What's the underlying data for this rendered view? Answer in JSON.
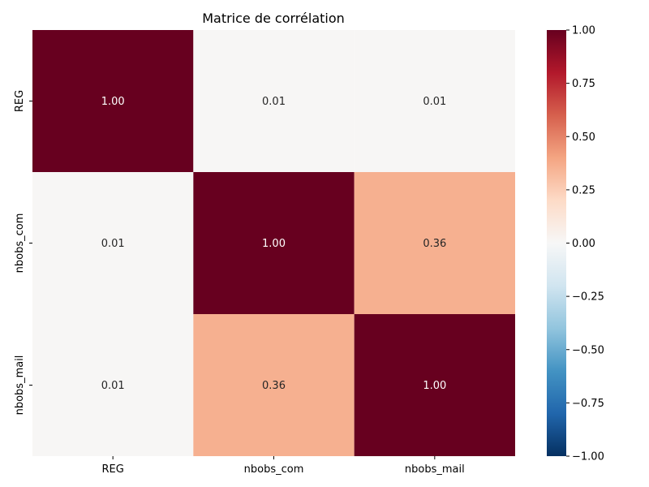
{
  "chart_data": {
    "type": "heatmap",
    "title": "Matrice de corrélation",
    "rows": [
      "REG",
      "nbobs_com",
      "nbobs_mail"
    ],
    "columns": [
      "REG",
      "nbobs_com",
      "nbobs_mail"
    ],
    "values": [
      [
        1.0,
        0.01,
        0.01
      ],
      [
        0.01,
        1.0,
        0.36
      ],
      [
        0.01,
        0.36,
        1.0
      ]
    ],
    "cell_labels": [
      [
        "1.00",
        "0.01",
        "0.01"
      ],
      [
        "0.01",
        "1.00",
        "0.36"
      ],
      [
        "0.01",
        "0.36",
        "1.00"
      ]
    ],
    "colorbar": {
      "vmin": -1.0,
      "vmax": 1.0,
      "ticks": [
        -1.0,
        -0.75,
        -0.5,
        -0.25,
        0.0,
        0.25,
        0.5,
        0.75,
        1.0
      ],
      "tick_labels": [
        "−1.00",
        "−0.75",
        "−0.50",
        "−0.25",
        "0.00",
        "0.25",
        "0.50",
        "0.75",
        "1.00"
      ],
      "colormap": "RdBu_r"
    },
    "colors": {
      "colormap_stops": [
        "#053061",
        "#2166ac",
        "#4393c3",
        "#92c5de",
        "#d1e5f0",
        "#f7f7f7",
        "#fddbc7",
        "#f4a582",
        "#d6604d",
        "#b2182b",
        "#67001f"
      ]
    }
  }
}
